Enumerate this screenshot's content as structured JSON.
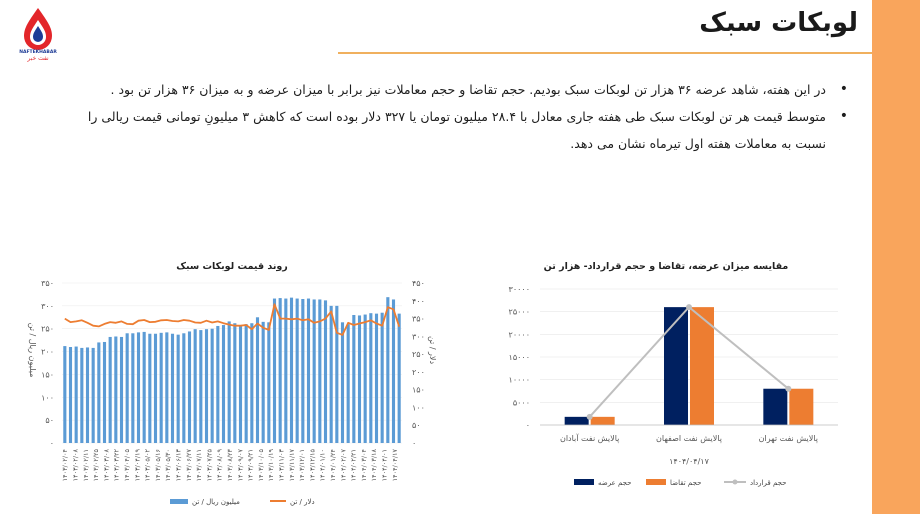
{
  "page": {
    "title": "لوبکات سبک",
    "logo_text": "NAFTEKHABAR",
    "logo_subtext": "نفت خبر",
    "bullets": [
      "در این هفته، شاهد عرضه ۳۶ هزار تن لوبکات سبک بودیم. حجم تقاضا و حجم معاملات نیز برابر با میزان عرضه و به میزان ۳۶ هزار تن بود .",
      "متوسط قیمت هر تن لوبکات سبک طی هفته جاری معادل با ۲۸.۴ میلیون تومان یا ۳۲۷ دلار بوده است که کاهش ۳ میلیونِ تومانی قیمت ریالی را نسبت به معاملات هفته اول تیرماه نشان می دهد."
    ],
    "colors": {
      "accent": "#F9A55C",
      "rule": "#F0B05E",
      "bar": "#5B9BD5",
      "line": "#ED7D31",
      "navy": "#002060",
      "gray": "#BFBFBF"
    }
  },
  "chart_data": [
    {
      "type": "bar+line",
      "title": "روند قیمت لوبکات سبک",
      "ylabel_left": "میلیون ریال / تن",
      "ylabel_right": "دلار / تن",
      "ylim_left": [
        0,
        350
      ],
      "ylim_right": [
        0,
        450
      ],
      "yticks_left": [
        "۰",
        "۵۰",
        "۱۰۰",
        "۱۵۰",
        "۲۰۰",
        "۲۵۰",
        "۳۰۰",
        "۳۵۰"
      ],
      "yticks_right": [
        "۰",
        "۵۰",
        "۱۰۰",
        "۱۵۰",
        "۲۰۰",
        "۲۵۰",
        "۳۰۰",
        "۳۵۰",
        "۴۰۰",
        "۴۵۰"
      ],
      "xticks": [
        "۱۴۰۳/۰۲/۰۴",
        "۱۴۰۳/۰۲/۰۸",
        "۱۴۰۳/۰۲/۱۱",
        "۱۴۰۳/۰۲/۲۵",
        "۱۴۰۳/۰۳/۰۸",
        "۱۴۰۳/۰۳/۲۲",
        "۱۴۰۳/۰۴/۰۵",
        "۱۴۰۳/۰۴/۱۹",
        "۱۴۰۳/۰۵/۰۲",
        "۱۴۰۳/۰۵/۱۶",
        "۱۴۰۳/۰۵/۳۰",
        "۱۴۰۳/۰۶/۱۳",
        "۱۴۰۳/۰۶/۲۷",
        "۱۴۰۳/۰۷/۱۱",
        "۱۴۰۳/۰۷/۲۵",
        "۱۴۰۳/۰۸/۰۹",
        "۱۴۰۳/۰۸/۲۳",
        "۱۴۰۳/۰۹/۰۷",
        "۱۴۰۳/۰۹/۲۱",
        "۱۴۰۳/۱۰/۰۵",
        "۱۴۰۳/۱۰/۱۹",
        "۱۴۰۳/۱۱/۰۳",
        "۱۴۰۳/۱۱/۱۷",
        "۱۴۰۳/۱۲/۰۱",
        "۱۴۰۳/۱۲/۱۵",
        "۱۴۰۴/۰۱/۱۰",
        "۱۴۰۴/۰۱/۲۴",
        "۱۴۰۴/۰۲/۰۷",
        "۱۴۰۴/۰۲/۲۱",
        "۱۴۰۴/۰۳/۰۴",
        "۱۴۰۴/۰۳/۱۸",
        "۱۴۰۴/۰۴/۰۱",
        "۱۴۰۴/۰۴/۱۷"
      ],
      "series": [
        {
          "name": "میلیون ریال / تن",
          "type": "bar",
          "axis": "left",
          "values": [
            212,
            210,
            211,
            208,
            209,
            208,
            220,
            221,
            232,
            233,
            232,
            240,
            240,
            242,
            243,
            239,
            239,
            241,
            242,
            239,
            237,
            240,
            244,
            249,
            247,
            249,
            250,
            256,
            258,
            266,
            262,
            258,
            260,
            262,
            275,
            265,
            264,
            316,
            317,
            316,
            318,
            316,
            315,
            316,
            314,
            314,
            312,
            300,
            300,
            264,
            260,
            280,
            279,
            281,
            284,
            283,
            285,
            319,
            314,
            283
          ]
        },
        {
          "name": "دلار / تن",
          "type": "line",
          "axis": "right",
          "values": [
            350,
            340,
            342,
            345,
            338,
            330,
            328,
            335,
            340,
            338,
            342,
            335,
            334,
            344,
            346,
            340,
            341,
            345,
            346,
            343,
            342,
            346,
            344,
            339,
            338,
            344,
            339,
            342,
            337,
            333,
            330,
            330,
            332,
            320,
            336,
            324,
            318,
            390,
            350,
            350,
            348,
            350,
            345,
            348,
            338,
            342,
            350,
            370,
            310,
            304,
            338,
            332,
            336,
            340,
            345,
            336,
            330,
            382,
            376,
            327
          ]
        }
      ]
    },
    {
      "type": "bar+line",
      "title": "مقایسه میزان عرضه، تقاضا و حجم قرارداد- هزار تن",
      "xlabel": "۱۴۰۴/۰۴/۱۷",
      "ylim": [
        0,
        30000
      ],
      "yticks": [
        "۰",
        "۵۰۰۰",
        "۱۰۰۰۰",
        "۱۵۰۰۰",
        "۲۰۰۰۰",
        "۲۵۰۰۰",
        "۳۰۰۰۰"
      ],
      "categories": [
        "پالایش نفت آبادان",
        "پالایش نفت اصفهان",
        "پالایش نفت تهران"
      ],
      "series": [
        {
          "name": "حجم عرضه",
          "type": "bar",
          "values": [
            1800,
            26000,
            8000
          ]
        },
        {
          "name": "حجم تقاضا",
          "type": "bar",
          "values": [
            1800,
            26000,
            8000
          ]
        },
        {
          "name": "حجم قرارداد",
          "type": "line",
          "values": [
            1800,
            26000,
            8000
          ]
        }
      ]
    }
  ]
}
